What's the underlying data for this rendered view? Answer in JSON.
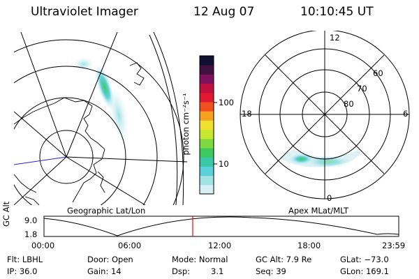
{
  "header": {
    "instrument": "Ultraviolet Imager",
    "date": "12 Aug 07",
    "time": "10:10:45 UT"
  },
  "left_map": {
    "label": "Geographic Lat/Lon"
  },
  "right_map": {
    "label": "Apex MLat/MLT",
    "mlt_labels": [
      "12",
      "18",
      "6",
      "0"
    ],
    "mlat_labels": [
      "60",
      "70",
      "80"
    ]
  },
  "colorbar": {
    "unit_label": "photon cm⁻²s⁻¹",
    "tick_labels": [
      "100",
      "10"
    ],
    "colors": [
      "#d8f0f4",
      "#a0e2e6",
      "#5cd0d8",
      "#38c8a8",
      "#40c860",
      "#80d840",
      "#c8e830",
      "#f0e030",
      "#f8a020",
      "#f05020",
      "#e01830",
      "#c01040",
      "#801060",
      "#401040",
      "#101030"
    ]
  },
  "alt_plot": {
    "ylabel": "GC Alt",
    "ytick_labels": [
      "9.0",
      "1.8"
    ],
    "xtick_labels": [
      "00:00",
      "06:00",
      "12:00",
      "18:00",
      "23:59"
    ],
    "current_time_color": "#ff0000"
  },
  "info": {
    "flt": "Flt: LBHL",
    "ip": "IP: 36.0",
    "door": "Door: Open",
    "gain": "Gain: 14",
    "mode": "Mode: Normal",
    "dsp_label": "Dsp:",
    "dsp_value": "3.1",
    "gcalt": "GC Alt: 7.9 Re",
    "seq": "Seq: 39",
    "glat": "GLat: −73.0",
    "glon": "GLon: 169.1"
  }
}
